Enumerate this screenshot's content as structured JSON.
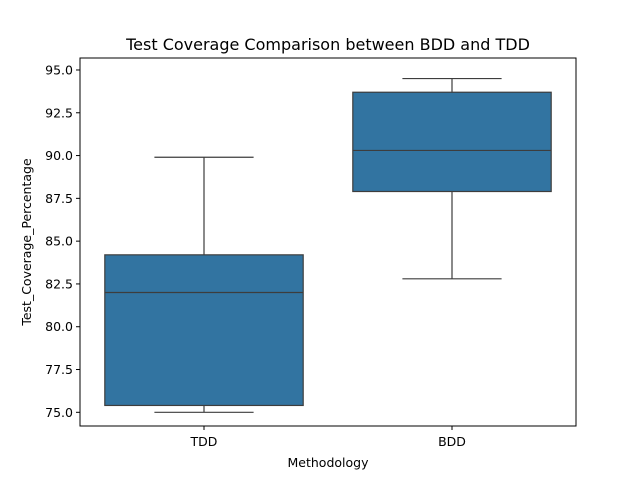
{
  "chart_data": {
    "type": "box",
    "title": "Test Coverage Comparison between BDD and TDD",
    "xlabel": "Methodology",
    "ylabel": "Test_Coverage_Percentage",
    "ylim": [
      74.2,
      95.7
    ],
    "yticks": [
      "75.0",
      "77.5",
      "80.0",
      "82.5",
      "85.0",
      "87.5",
      "90.0",
      "92.5",
      "95.0"
    ],
    "grid": false,
    "box_color": "#3274a1",
    "edge_color": "#3d3d3d",
    "categories": [
      "TDD",
      "BDD"
    ],
    "boxes": [
      {
        "category": "TDD",
        "whisker_low": 75.0,
        "q1": 75.4,
        "median": 82.0,
        "q3": 84.2,
        "whisker_high": 89.9
      },
      {
        "category": "BDD",
        "whisker_low": 82.8,
        "q1": 87.9,
        "median": 90.3,
        "q3": 93.7,
        "whisker_high": 94.5
      }
    ]
  }
}
